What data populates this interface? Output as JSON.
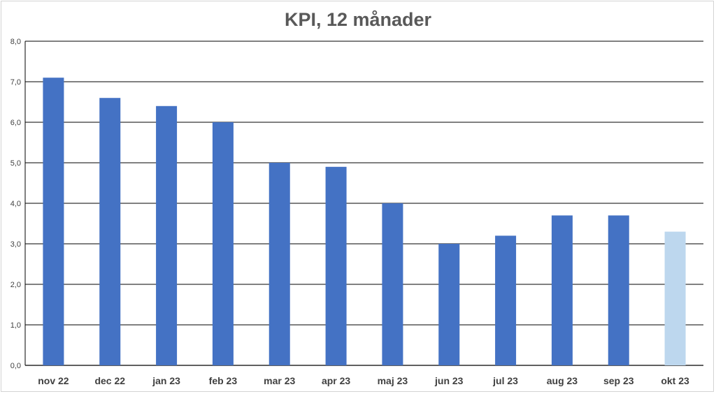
{
  "chart_data": {
    "type": "bar",
    "title": "KPI, 12 månader",
    "xlabel": "",
    "ylabel": "",
    "categories": [
      "nov 22",
      "dec 22",
      "jan 23",
      "feb 23",
      "mar 23",
      "apr 23",
      "maj 23",
      "jun 23",
      "jul 23",
      "aug 23",
      "sep 23",
      "okt 23"
    ],
    "values": [
      7.1,
      6.6,
      6.4,
      6.0,
      5.0,
      4.9,
      4.0,
      3.0,
      3.2,
      3.7,
      3.7,
      3.3
    ],
    "ylim": [
      0,
      8
    ],
    "yticks": [
      "0,0",
      "1,0",
      "2,0",
      "3,0",
      "4,0",
      "5,0",
      "6,0",
      "7,0",
      "8,0"
    ],
    "grid": true,
    "legend": "none",
    "colors": {
      "bar": "#4472c4",
      "highlight_bar": "#bdd7ee",
      "gridline": "#000000",
      "title": "#595959",
      "tick_label": "#404040"
    },
    "highlight_index": 11
  }
}
